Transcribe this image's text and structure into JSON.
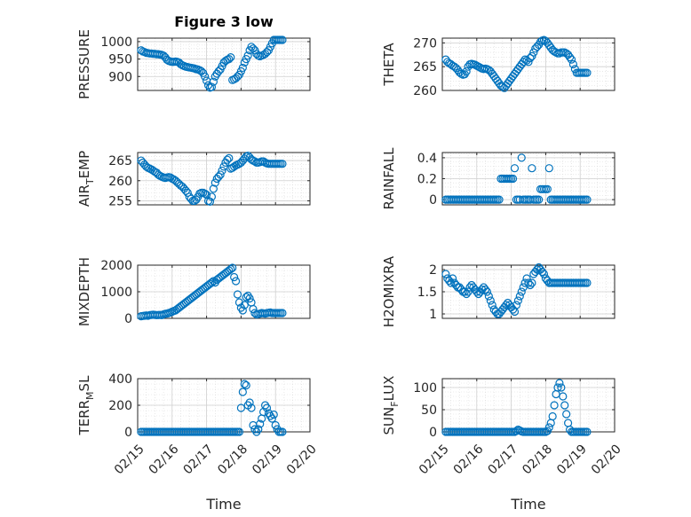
{
  "figure_title": "Figure 3 low",
  "x_axis_label": "Time",
  "x_tick_labels": [
    "02/15",
    "02/16",
    "02/17",
    "02/18",
    "02/19",
    "02/20"
  ],
  "colors": {
    "marker": "#0072BD",
    "axes": "#262626",
    "grid": "#d9d9d9"
  },
  "chart_data": [
    {
      "type": "scatter",
      "ylabel": "PRESSURE",
      "ylim": [
        860,
        1010
      ],
      "yticks": [
        900,
        950,
        1000
      ],
      "xlim": [
        0,
        5
      ],
      "x": [
        0.1,
        0.15,
        0.2,
        0.25,
        0.3,
        0.35,
        0.4,
        0.45,
        0.5,
        0.55,
        0.6,
        0.65,
        0.7,
        0.75,
        0.8,
        0.85,
        0.9,
        0.95,
        1.0,
        1.05,
        1.1,
        1.15,
        1.2,
        1.25,
        1.3,
        1.35,
        1.4,
        1.45,
        1.5,
        1.55,
        1.6,
        1.65,
        1.7,
        1.75,
        1.8,
        1.85,
        1.9,
        1.95,
        2.0,
        2.05,
        2.1,
        2.15,
        2.2,
        2.25,
        2.3,
        2.35,
        2.4,
        2.45,
        2.5,
        2.55,
        2.6,
        2.65,
        2.7,
        2.75,
        2.8,
        2.85,
        2.9,
        2.95,
        3.0,
        3.05,
        3.1,
        3.15,
        3.2,
        3.25,
        3.3,
        3.35,
        3.4,
        3.45,
        3.5,
        3.55,
        3.6,
        3.65,
        3.7,
        3.75,
        3.8,
        3.85,
        3.9,
        3.95,
        4.0,
        4.05,
        4.1,
        4.15,
        4.2
      ],
      "y": [
        975,
        972,
        970,
        968,
        967,
        966,
        966,
        965,
        965,
        964,
        964,
        963,
        962,
        960,
        955,
        948,
        945,
        943,
        942,
        942,
        943,
        942,
        940,
        935,
        932,
        930,
        928,
        927,
        926,
        925,
        924,
        923,
        921,
        920,
        918,
        915,
        910,
        900,
        888,
        875,
        868,
        870,
        885,
        900,
        908,
        915,
        920,
        930,
        940,
        945,
        948,
        950,
        955,
        890,
        892,
        895,
        900,
        905,
        915,
        925,
        940,
        950,
        960,
        975,
        985,
        980,
        975,
        965,
        960,
        958,
        960,
        962,
        965,
        970,
        975,
        985,
        995,
        1005,
        1005,
        1005,
        1005,
        1005,
        1005
      ]
    },
    {
      "type": "scatter",
      "ylabel": "THETA",
      "ylim": [
        260,
        271
      ],
      "yticks": [
        260,
        265,
        270
      ],
      "xlim": [
        0,
        5
      ],
      "x": [
        0.1,
        0.15,
        0.2,
        0.25,
        0.3,
        0.35,
        0.4,
        0.45,
        0.5,
        0.55,
        0.6,
        0.65,
        0.7,
        0.75,
        0.8,
        0.85,
        0.9,
        0.95,
        1.0,
        1.05,
        1.1,
        1.15,
        1.2,
        1.25,
        1.3,
        1.35,
        1.4,
        1.45,
        1.5,
        1.55,
        1.6,
        1.65,
        1.7,
        1.75,
        1.8,
        1.85,
        1.9,
        1.95,
        2.0,
        2.05,
        2.1,
        2.15,
        2.2,
        2.25,
        2.3,
        2.35,
        2.4,
        2.45,
        2.5,
        2.55,
        2.6,
        2.65,
        2.7,
        2.75,
        2.8,
        2.85,
        2.9,
        2.95,
        3.0,
        3.05,
        3.1,
        3.15,
        3.2,
        3.25,
        3.3,
        3.35,
        3.4,
        3.45,
        3.5,
        3.55,
        3.6,
        3.65,
        3.7,
        3.75,
        3.8,
        3.85,
        3.9,
        3.95,
        4.0,
        4.05,
        4.1,
        4.15,
        4.2
      ],
      "y": [
        266.5,
        266,
        265.7,
        265.5,
        265.2,
        265,
        264.7,
        264.3,
        263.8,
        263.5,
        263.3,
        263.4,
        264,
        265,
        265.5,
        265.6,
        265.5,
        265.4,
        265.2,
        265,
        264.8,
        264.6,
        264.5,
        264.6,
        264.5,
        264.3,
        264,
        263.5,
        263,
        262.5,
        262,
        261.5,
        261,
        260.8,
        260.5,
        261,
        261.5,
        262,
        262.5,
        263,
        263.5,
        264,
        264.5,
        265,
        265.5,
        266,
        266.5,
        266.3,
        266,
        266.8,
        267.2,
        268,
        268.8,
        269.2,
        269.6,
        270.2,
        270.5,
        270.6,
        270.4,
        270,
        269.5,
        269,
        268.5,
        268.2,
        268,
        267.8,
        267.8,
        268,
        268,
        268,
        267.8,
        267.5,
        267,
        266.5,
        265.5,
        264.5,
        263.7,
        263.7,
        263.7,
        263.7,
        263.7,
        263.7,
        263.7
      ]
    },
    {
      "type": "scatter",
      "ylabel": "AIR_TEMP",
      "ylim": [
        254,
        267
      ],
      "yticks": [
        255,
        260,
        265
      ],
      "xlim": [
        0,
        5
      ],
      "x": [
        0.1,
        0.15,
        0.2,
        0.25,
        0.3,
        0.35,
        0.4,
        0.45,
        0.5,
        0.55,
        0.6,
        0.65,
        0.7,
        0.75,
        0.8,
        0.85,
        0.9,
        0.95,
        1.0,
        1.05,
        1.1,
        1.15,
        1.2,
        1.25,
        1.3,
        1.35,
        1.4,
        1.45,
        1.5,
        1.55,
        1.6,
        1.65,
        1.7,
        1.75,
        1.8,
        1.85,
        1.9,
        1.95,
        2.0,
        2.05,
        2.1,
        2.15,
        2.2,
        2.25,
        2.3,
        2.35,
        2.4,
        2.45,
        2.5,
        2.55,
        2.6,
        2.65,
        2.7,
        2.75,
        2.8,
        2.85,
        2.9,
        2.95,
        3.0,
        3.05,
        3.1,
        3.15,
        3.2,
        3.25,
        3.3,
        3.35,
        3.4,
        3.45,
        3.5,
        3.55,
        3.6,
        3.65,
        3.7,
        3.75,
        3.8,
        3.85,
        3.9,
        3.95,
        4.0,
        4.05,
        4.1,
        4.15,
        4.2
      ],
      "y": [
        265,
        264.5,
        264,
        263.5,
        263.2,
        263,
        262.8,
        262.5,
        262.2,
        262,
        261.5,
        261.2,
        261,
        260.8,
        260.7,
        260.8,
        260.9,
        260.8,
        260.5,
        260.3,
        260,
        259.6,
        259.2,
        258.8,
        258.5,
        258,
        257.5,
        257,
        256,
        255.5,
        255,
        255,
        255.3,
        256,
        256.8,
        257,
        257,
        256.8,
        256.5,
        255,
        254.8,
        256,
        258,
        259.5,
        260.5,
        261,
        261.5,
        262.5,
        263.5,
        264.5,
        265.2,
        265.6,
        263,
        263.2,
        263.5,
        263.8,
        264,
        264.2,
        264.5,
        265,
        265.5,
        266,
        266.2,
        265.8,
        265.3,
        265,
        264.8,
        264.5,
        264.5,
        264.6,
        264.8,
        264.8,
        264.5,
        264.3,
        264.2,
        264.2,
        264.2,
        264.2,
        264.2,
        264.2,
        264.2,
        264.2,
        264.2
      ]
    },
    {
      "type": "scatter",
      "ylabel": "RAINFALL",
      "ylim": [
        -0.05,
        0.45
      ],
      "yticks": [
        0,
        0.2,
        0.4
      ],
      "xlim": [
        0,
        5
      ],
      "x": [
        0.1,
        0.15,
        0.2,
        0.25,
        0.3,
        0.35,
        0.4,
        0.45,
        0.5,
        0.55,
        0.6,
        0.65,
        0.7,
        0.75,
        0.8,
        0.85,
        0.9,
        0.95,
        1.0,
        1.05,
        1.1,
        1.15,
        1.2,
        1.25,
        1.3,
        1.35,
        1.4,
        1.45,
        1.5,
        1.55,
        1.6,
        1.65,
        1.7,
        1.75,
        1.8,
        1.85,
        1.9,
        1.95,
        2.0,
        2.05,
        2.1,
        2.15,
        2.2,
        2.25,
        2.3,
        2.35,
        2.4,
        2.45,
        2.5,
        2.55,
        2.6,
        2.65,
        2.7,
        2.75,
        2.8,
        2.85,
        2.9,
        2.95,
        3.0,
        3.05,
        3.1,
        3.15,
        3.2,
        3.25,
        3.3,
        3.35,
        3.4,
        3.45,
        3.5,
        3.55,
        3.6,
        3.65,
        3.7,
        3.75,
        3.8,
        3.85,
        3.9,
        3.95,
        4.0,
        4.05,
        4.1,
        4.15,
        4.2
      ],
      "y": [
        0,
        0,
        0,
        0,
        0,
        0,
        0,
        0,
        0,
        0,
        0,
        0,
        0,
        0,
        0,
        0,
        0,
        0,
        0,
        0,
        0,
        0,
        0,
        0,
        0,
        0,
        0,
        0,
        0,
        0,
        0,
        0,
        0.2,
        0.2,
        0.2,
        0.2,
        0.2,
        0.2,
        0.2,
        0.2,
        0.3,
        0,
        0,
        0,
        0.4,
        0,
        0,
        0,
        0,
        0,
        0.3,
        0,
        0,
        0,
        0,
        0.1,
        0.1,
        0.1,
        0.1,
        0.1,
        0.3,
        0,
        0,
        0,
        0,
        0,
        0,
        0,
        0,
        0,
        0,
        0,
        0,
        0,
        0,
        0,
        0,
        0,
        0,
        0,
        0,
        0,
        0
      ]
    },
    {
      "type": "scatter",
      "ylabel": "MIXDEPTH",
      "ylim": [
        0,
        2000
      ],
      "yticks": [
        0,
        1000,
        2000
      ],
      "xlim": [
        0,
        5
      ],
      "x": [
        0.1,
        0.15,
        0.2,
        0.25,
        0.3,
        0.35,
        0.4,
        0.45,
        0.5,
        0.55,
        0.6,
        0.65,
        0.7,
        0.75,
        0.8,
        0.85,
        0.9,
        0.95,
        1.0,
        1.05,
        1.1,
        1.15,
        1.2,
        1.25,
        1.3,
        1.35,
        1.4,
        1.45,
        1.5,
        1.55,
        1.6,
        1.65,
        1.7,
        1.75,
        1.8,
        1.85,
        1.9,
        1.95,
        2.0,
        2.05,
        2.1,
        2.15,
        2.2,
        2.25,
        2.3,
        2.35,
        2.4,
        2.45,
        2.5,
        2.55,
        2.6,
        2.65,
        2.7,
        2.75,
        2.8,
        2.85,
        2.9,
        2.95,
        3.0,
        3.05,
        3.1,
        3.15,
        3.2,
        3.25,
        3.3,
        3.35,
        3.4,
        3.45,
        3.5,
        3.55,
        3.6,
        3.65,
        3.7,
        3.75,
        3.8,
        3.85,
        3.9,
        3.95,
        4.0,
        4.05,
        4.1,
        4.15,
        4.2
      ],
      "y": [
        80,
        90,
        100,
        110,
        100,
        120,
        130,
        140,
        130,
        120,
        125,
        130,
        120,
        150,
        170,
        180,
        200,
        220,
        250,
        280,
        300,
        350,
        400,
        450,
        500,
        550,
        600,
        650,
        700,
        750,
        800,
        850,
        900,
        950,
        1000,
        1050,
        1100,
        1150,
        1200,
        1250,
        1300,
        1350,
        1400,
        1350,
        1450,
        1500,
        1550,
        1600,
        1650,
        1700,
        1750,
        1800,
        1850,
        1900,
        1550,
        1400,
        900,
        600,
        400,
        300,
        500,
        800,
        850,
        750,
        600,
        350,
        200,
        150,
        160,
        180,
        200,
        190,
        180,
        200,
        210,
        220,
        200,
        200,
        200,
        200,
        200,
        200,
        200
      ]
    },
    {
      "type": "scatter",
      "ylabel": "H2OMIXRA",
      "ylim": [
        0.9,
        2.1
      ],
      "yticks": [
        1,
        1.5,
        2
      ],
      "xlim": [
        0,
        5
      ],
      "x": [
        0.1,
        0.15,
        0.2,
        0.25,
        0.3,
        0.35,
        0.4,
        0.45,
        0.5,
        0.55,
        0.6,
        0.65,
        0.7,
        0.75,
        0.8,
        0.85,
        0.9,
        0.95,
        1.0,
        1.05,
        1.1,
        1.15,
        1.2,
        1.25,
        1.3,
        1.35,
        1.4,
        1.45,
        1.5,
        1.55,
        1.6,
        1.65,
        1.7,
        1.75,
        1.8,
        1.85,
        1.9,
        1.95,
        2.0,
        2.05,
        2.1,
        2.15,
        2.2,
        2.25,
        2.3,
        2.35,
        2.4,
        2.45,
        2.5,
        2.55,
        2.6,
        2.65,
        2.7,
        2.75,
        2.8,
        2.85,
        2.9,
        2.95,
        3.0,
        3.05,
        3.1,
        3.15,
        3.2,
        3.25,
        3.3,
        3.35,
        3.4,
        3.45,
        3.5,
        3.55,
        3.6,
        3.65,
        3.7,
        3.75,
        3.8,
        3.85,
        3.9,
        3.95,
        4.0,
        4.05,
        4.1,
        4.15,
        4.2
      ],
      "y": [
        1.9,
        1.8,
        1.75,
        1.7,
        1.8,
        1.7,
        1.65,
        1.6,
        1.6,
        1.55,
        1.5,
        1.5,
        1.45,
        1.5,
        1.6,
        1.65,
        1.6,
        1.55,
        1.5,
        1.45,
        1.5,
        1.55,
        1.6,
        1.55,
        1.5,
        1.4,
        1.3,
        1.2,
        1.1,
        1.05,
        1.0,
        1.0,
        1.05,
        1.1,
        1.15,
        1.2,
        1.25,
        1.2,
        1.15,
        1.1,
        1.05,
        1.2,
        1.3,
        1.4,
        1.5,
        1.6,
        1.7,
        1.8,
        1.7,
        1.65,
        1.7,
        1.9,
        1.95,
        2.0,
        2.05,
        2.0,
        1.95,
        1.9,
        1.8,
        1.75,
        1.7,
        1.7,
        1.7,
        1.7,
        1.7,
        1.7,
        1.7,
        1.7,
        1.7,
        1.7,
        1.7,
        1.7,
        1.7,
        1.7,
        1.7,
        1.7,
        1.7,
        1.7,
        1.7,
        1.7,
        1.7,
        1.7,
        1.7
      ]
    },
    {
      "type": "scatter",
      "ylabel": "TERR_MSL",
      "ylim": [
        0,
        400
      ],
      "yticks": [
        0,
        200,
        400
      ],
      "xlim": [
        0,
        5
      ],
      "x": [
        0.1,
        0.15,
        0.2,
        0.25,
        0.3,
        0.35,
        0.4,
        0.45,
        0.5,
        0.55,
        0.6,
        0.65,
        0.7,
        0.75,
        0.8,
        0.85,
        0.9,
        0.95,
        1.0,
        1.05,
        1.1,
        1.15,
        1.2,
        1.25,
        1.3,
        1.35,
        1.4,
        1.45,
        1.5,
        1.55,
        1.6,
        1.65,
        1.7,
        1.75,
        1.8,
        1.85,
        1.9,
        1.95,
        2.0,
        2.05,
        2.1,
        2.15,
        2.2,
        2.25,
        2.3,
        2.35,
        2.4,
        2.45,
        2.5,
        2.55,
        2.6,
        2.65,
        2.7,
        2.75,
        2.8,
        2.85,
        2.9,
        2.95,
        3.0,
        3.05,
        3.1,
        3.15,
        3.2,
        3.25,
        3.3,
        3.35,
        3.4,
        3.45,
        3.5,
        3.55,
        3.6,
        3.65,
        3.7,
        3.75,
        3.8,
        3.85,
        3.9,
        3.95,
        4.0,
        4.05,
        4.1,
        4.15,
        4.2
      ],
      "y": [
        0,
        0,
        0,
        0,
        0,
        0,
        0,
        0,
        0,
        0,
        0,
        0,
        0,
        0,
        0,
        0,
        0,
        0,
        0,
        0,
        0,
        0,
        0,
        0,
        0,
        0,
        0,
        0,
        0,
        0,
        0,
        0,
        0,
        0,
        0,
        0,
        0,
        0,
        0,
        0,
        0,
        0,
        0,
        0,
        0,
        0,
        0,
        0,
        0,
        0,
        0,
        0,
        0,
        0,
        0,
        0,
        0,
        0,
        180,
        300,
        360,
        350,
        200,
        220,
        180,
        50,
        20,
        0,
        20,
        60,
        100,
        150,
        200,
        180,
        140,
        120,
        100,
        130,
        50,
        20,
        0,
        0,
        0
      ]
    },
    {
      "type": "scatter",
      "ylabel": "SUN_FLUX",
      "ylim": [
        0,
        120
      ],
      "yticks": [
        0,
        50,
        100
      ],
      "xlim": [
        0,
        5
      ],
      "x": [
        0.1,
        0.15,
        0.2,
        0.25,
        0.3,
        0.35,
        0.4,
        0.45,
        0.5,
        0.55,
        0.6,
        0.65,
        0.7,
        0.75,
        0.8,
        0.85,
        0.9,
        0.95,
        1.0,
        1.05,
        1.1,
        1.15,
        1.2,
        1.25,
        1.3,
        1.35,
        1.4,
        1.45,
        1.5,
        1.55,
        1.6,
        1.65,
        1.7,
        1.75,
        1.8,
        1.85,
        1.9,
        1.95,
        2.0,
        2.05,
        2.1,
        2.15,
        2.2,
        2.25,
        2.3,
        2.35,
        2.4,
        2.45,
        2.5,
        2.55,
        2.6,
        2.65,
        2.7,
        2.75,
        2.8,
        2.85,
        2.9,
        2.95,
        3.0,
        3.05,
        3.1,
        3.15,
        3.2,
        3.25,
        3.3,
        3.35,
        3.4,
        3.45,
        3.5,
        3.55,
        3.6,
        3.65,
        3.7,
        3.75,
        3.8,
        3.85,
        3.9,
        3.95,
        4.0,
        4.05,
        4.1,
        4.15,
        4.2
      ],
      "y": [
        0,
        0,
        0,
        0,
        0,
        0,
        0,
        0,
        0,
        0,
        0,
        0,
        0,
        0,
        0,
        0,
        0,
        0,
        0,
        0,
        0,
        0,
        0,
        0,
        0,
        0,
        0,
        0,
        0,
        0,
        0,
        0,
        0,
        0,
        0,
        0,
        0,
        0,
        0,
        0,
        0,
        2,
        5,
        3,
        1,
        0,
        0,
        0,
        0,
        0,
        0,
        0,
        0,
        0,
        0,
        0,
        0,
        0,
        0,
        2,
        10,
        20,
        35,
        60,
        85,
        100,
        110,
        100,
        80,
        60,
        40,
        20,
        5,
        0,
        0,
        0,
        0,
        0,
        0,
        0,
        0,
        0,
        0
      ]
    }
  ]
}
